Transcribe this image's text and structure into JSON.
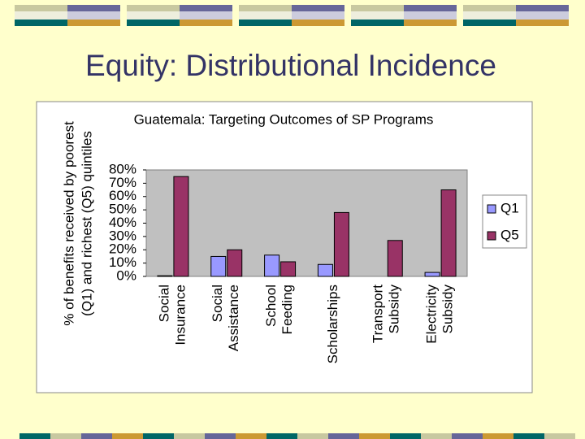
{
  "slide_title": "Equity: Distributional Incidence",
  "chart_data": {
    "type": "bar",
    "title": "Guatemala: Targeting Outcomes of SP Programs",
    "y_label": [
      "% of benefits received by poorest",
      "(Q1) and richest (Q5) quintiles"
    ],
    "categories": [
      [
        "Social",
        "Insurance"
      ],
      [
        "Social",
        "Assistance"
      ],
      [
        "School",
        "Feeding"
      ],
      [
        "Scholarships"
      ],
      [
        "Transport",
        "Subsidy"
      ],
      [
        "Electricity",
        "Subsidy"
      ]
    ],
    "series": [
      {
        "name": "Q1",
        "color": "#9999ff",
        "values": [
          0.5,
          15,
          16,
          9,
          0,
          3
        ]
      },
      {
        "name": "Q5",
        "color": "#993366",
        "values": [
          75,
          20,
          11,
          48,
          27,
          65
        ]
      }
    ],
    "ylim": [
      0,
      80
    ],
    "yticks": [
      {
        "value": 0,
        "label": "0%"
      },
      {
        "value": 10,
        "label": "10%"
      },
      {
        "value": 20,
        "label": "20%"
      },
      {
        "value": 30,
        "label": "30%"
      },
      {
        "value": 40,
        "label": "40%"
      },
      {
        "value": 50,
        "label": "50%"
      },
      {
        "value": 60,
        "label": "60%"
      },
      {
        "value": 70,
        "label": "70%"
      },
      {
        "value": 80,
        "label": "80%"
      }
    ],
    "grid": false,
    "legend": "right"
  }
}
